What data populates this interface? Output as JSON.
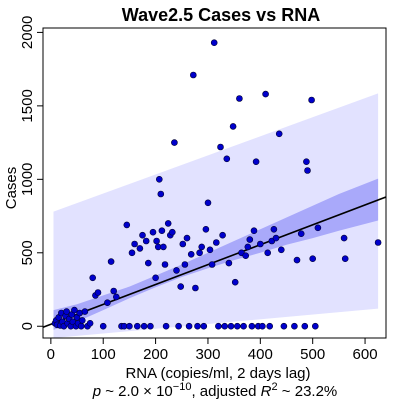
{
  "chart_data": {
    "type": "scatter",
    "title": "Wave2.5 Cases vs RNA",
    "xlabel": "RNA (copies/ml, 2 days lag)",
    "ylabel": "Cases",
    "xlim": [
      -15,
      640
    ],
    "ylim": [
      -80,
      2030
    ],
    "x_ticks": [
      0,
      100,
      200,
      300,
      400,
      500,
      600
    ],
    "y_ticks": [
      0,
      500,
      1000,
      1500,
      2000
    ],
    "caption": {
      "p_symbol": "p",
      "p_text": " ~ 2.0 × 10",
      "p_exp": "−10",
      "r2_prefix": ", adjusted ",
      "r2_symbol": "R",
      "r2_exp": "2",
      "r2_value": " ~ 23.2%"
    },
    "colors": {
      "points": "#0000cc",
      "point_edge": "#000033",
      "prediction_band": "#e2e2ff",
      "confidence_band": "#a9a9fa",
      "fit_line": "#000000"
    },
    "fit_line": {
      "x": [
        -15,
        640
      ],
      "y": [
        -7,
        880
      ]
    },
    "confidence_band": {
      "x": [
        5,
        50,
        100,
        150,
        200,
        250,
        300,
        350,
        400,
        450,
        500,
        550,
        625
      ],
      "lower": [
        -25,
        30,
        110,
        190,
        265,
        335,
        395,
        450,
        500,
        555,
        600,
        650,
        720
      ],
      "upper": [
        110,
        150,
        210,
        270,
        345,
        420,
        500,
        580,
        660,
        740,
        820,
        900,
        1005
      ]
    },
    "prediction_band": {
      "x": [
        5,
        625
      ],
      "lower": [
        -800,
        120
      ],
      "upper": [
        780,
        1585
      ]
    },
    "points": [
      {
        "x": 8,
        "y": 20
      },
      {
        "x": 10,
        "y": 40
      },
      {
        "x": 12,
        "y": 10
      },
      {
        "x": 15,
        "y": 60
      },
      {
        "x": 18,
        "y": 5
      },
      {
        "x": 20,
        "y": 90
      },
      {
        "x": 22,
        "y": 30
      },
      {
        "x": 25,
        "y": 0
      },
      {
        "x": 28,
        "y": 70
      },
      {
        "x": 30,
        "y": 100
      },
      {
        "x": 32,
        "y": 20
      },
      {
        "x": 35,
        "y": 50
      },
      {
        "x": 38,
        "y": 0
      },
      {
        "x": 40,
        "y": 80
      },
      {
        "x": 42,
        "y": 30
      },
      {
        "x": 45,
        "y": 110
      },
      {
        "x": 48,
        "y": 0
      },
      {
        "x": 50,
        "y": 60
      },
      {
        "x": 52,
        "y": 20
      },
      {
        "x": 55,
        "y": 90
      },
      {
        "x": 58,
        "y": 0
      },
      {
        "x": 60,
        "y": 40
      },
      {
        "x": 65,
        "y": 100
      },
      {
        "x": 70,
        "y": 0
      },
      {
        "x": 75,
        "y": 20
      },
      {
        "x": 80,
        "y": 330
      },
      {
        "x": 85,
        "y": 210
      },
      {
        "x": 90,
        "y": 230
      },
      {
        "x": 100,
        "y": 0
      },
      {
        "x": 108,
        "y": 160
      },
      {
        "x": 115,
        "y": 440
      },
      {
        "x": 120,
        "y": 240
      },
      {
        "x": 125,
        "y": 200
      },
      {
        "x": 135,
        "y": 0
      },
      {
        "x": 140,
        "y": 0
      },
      {
        "x": 145,
        "y": 690
      },
      {
        "x": 150,
        "y": 0
      },
      {
        "x": 155,
        "y": 500
      },
      {
        "x": 160,
        "y": 560
      },
      {
        "x": 165,
        "y": 0
      },
      {
        "x": 170,
        "y": 530
      },
      {
        "x": 175,
        "y": 620
      },
      {
        "x": 178,
        "y": 0
      },
      {
        "x": 182,
        "y": 580
      },
      {
        "x": 186,
        "y": 430
      },
      {
        "x": 190,
        "y": 0
      },
      {
        "x": 195,
        "y": 640
      },
      {
        "x": 200,
        "y": 330
      },
      {
        "x": 202,
        "y": 580
      },
      {
        "x": 205,
        "y": 540
      },
      {
        "x": 207,
        "y": 1000
      },
      {
        "x": 210,
        "y": 900
      },
      {
        "x": 212,
        "y": 650
      },
      {
        "x": 215,
        "y": 540
      },
      {
        "x": 218,
        "y": 420
      },
      {
        "x": 220,
        "y": 0
      },
      {
        "x": 224,
        "y": 700
      },
      {
        "x": 228,
        "y": 620
      },
      {
        "x": 232,
        "y": 640
      },
      {
        "x": 236,
        "y": 1250
      },
      {
        "x": 240,
        "y": 380
      },
      {
        "x": 244,
        "y": 0
      },
      {
        "x": 248,
        "y": 270
      },
      {
        "x": 252,
        "y": 560
      },
      {
        "x": 256,
        "y": 420
      },
      {
        "x": 260,
        "y": 600
      },
      {
        "x": 264,
        "y": 0
      },
      {
        "x": 268,
        "y": 490
      },
      {
        "x": 272,
        "y": 1710
      },
      {
        "x": 276,
        "y": 260
      },
      {
        "x": 280,
        "y": 0
      },
      {
        "x": 284,
        "y": 500
      },
      {
        "x": 288,
        "y": 540
      },
      {
        "x": 292,
        "y": 0
      },
      {
        "x": 296,
        "y": 660
      },
      {
        "x": 300,
        "y": 840
      },
      {
        "x": 304,
        "y": 520
      },
      {
        "x": 308,
        "y": 420
      },
      {
        "x": 312,
        "y": 1930
      },
      {
        "x": 316,
        "y": 570
      },
      {
        "x": 320,
        "y": 0
      },
      {
        "x": 324,
        "y": 1220
      },
      {
        "x": 328,
        "y": 620
      },
      {
        "x": 332,
        "y": 0
      },
      {
        "x": 336,
        "y": 1140
      },
      {
        "x": 340,
        "y": 430
      },
      {
        "x": 344,
        "y": 0
      },
      {
        "x": 348,
        "y": 1360
      },
      {
        "x": 352,
        "y": 300
      },
      {
        "x": 356,
        "y": 0
      },
      {
        "x": 360,
        "y": 1550
      },
      {
        "x": 364,
        "y": 500
      },
      {
        "x": 368,
        "y": 0
      },
      {
        "x": 372,
        "y": 480
      },
      {
        "x": 376,
        "y": 540
      },
      {
        "x": 380,
        "y": 590
      },
      {
        "x": 384,
        "y": 0
      },
      {
        "x": 388,
        "y": 650
      },
      {
        "x": 392,
        "y": 1120
      },
      {
        "x": 396,
        "y": 0
      },
      {
        "x": 400,
        "y": 560
      },
      {
        "x": 404,
        "y": 0
      },
      {
        "x": 410,
        "y": 1580
      },
      {
        "x": 414,
        "y": 500
      },
      {
        "x": 418,
        "y": 0
      },
      {
        "x": 422,
        "y": 580
      },
      {
        "x": 426,
        "y": 660
      },
      {
        "x": 430,
        "y": 600
      },
      {
        "x": 436,
        "y": 1310
      },
      {
        "x": 440,
        "y": 520
      },
      {
        "x": 445,
        "y": 0
      },
      {
        "x": 465,
        "y": 0
      },
      {
        "x": 470,
        "y": 450
      },
      {
        "x": 478,
        "y": 630
      },
      {
        "x": 485,
        "y": 0
      },
      {
        "x": 488,
        "y": 1120
      },
      {
        "x": 490,
        "y": 1060
      },
      {
        "x": 498,
        "y": 1540
      },
      {
        "x": 500,
        "y": 460
      },
      {
        "x": 505,
        "y": 0
      },
      {
        "x": 510,
        "y": 670
      },
      {
        "x": 560,
        "y": 600
      },
      {
        "x": 562,
        "y": 460
      },
      {
        "x": 625,
        "y": 570
      }
    ]
  }
}
